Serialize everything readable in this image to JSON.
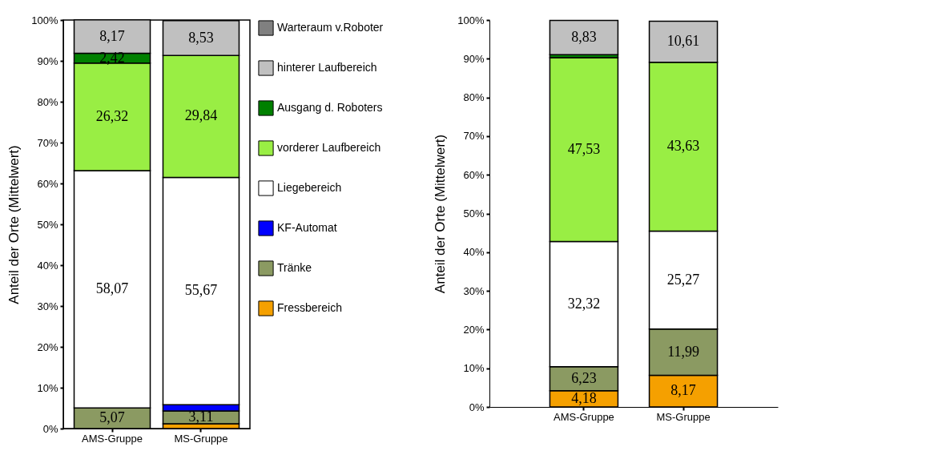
{
  "chart_data": [
    {
      "type": "bar",
      "stacked": true,
      "ylabel": "Anteil der Orte (Mittelwert)",
      "categories": [
        "AMS-Gruppe",
        "MS-Gruppe"
      ],
      "ylim": [
        0,
        100
      ],
      "yticks": [
        {
          "value": 0,
          "label": "0%"
        },
        {
          "value": 10,
          "label": "10%"
        },
        {
          "value": 20,
          "label": "20%"
        },
        {
          "value": 30,
          "label": "30%"
        },
        {
          "value": 40,
          "label": "40%"
        },
        {
          "value": 50,
          "label": "50%"
        },
        {
          "value": 60,
          "label": "60%"
        },
        {
          "value": 70,
          "label": "70%"
        },
        {
          "value": 80,
          "label": "80%"
        },
        {
          "value": 90,
          "label": "90%"
        },
        {
          "value": 100,
          "label": "100%"
        }
      ],
      "grid": false,
      "legend": "right",
      "series": [
        {
          "name": "Fressbereich",
          "color": "#f5a000",
          "values": [
            null,
            1.2
          ],
          "value_labels": [
            null,
            null
          ]
        },
        {
          "name": "Tränke",
          "color": "#8b9a62",
          "values": [
            5.07,
            3.11
          ],
          "value_labels": [
            "5,07",
            "3,11"
          ]
        },
        {
          "name": "KF-Automat",
          "color": "#0000ff",
          "values": [
            null,
            1.5
          ],
          "value_labels": [
            null,
            null
          ]
        },
        {
          "name": "Liegebereich",
          "color": "#ffffff",
          "values": [
            58.07,
            55.67
          ],
          "value_labels": [
            "58,07",
            "55,67"
          ]
        },
        {
          "name": "vorderer Laufbereich",
          "color": "#99ee44",
          "values": [
            26.32,
            29.84
          ],
          "value_labels": [
            "26,32",
            "29,84"
          ]
        },
        {
          "name": "Ausgang d. Roboters",
          "color": "#008000",
          "values": [
            2.42,
            null
          ],
          "value_labels": [
            "2,42",
            null
          ]
        },
        {
          "name": "hinterer Laufbereich",
          "color": "#c0c0c0",
          "values": [
            8.17,
            8.53
          ],
          "value_labels": [
            "8,17",
            "8,53"
          ]
        },
        {
          "name": "Warteraum v.Roboter",
          "color": "#808080",
          "values": [
            null,
            null
          ],
          "value_labels": [
            null,
            null
          ]
        }
      ]
    },
    {
      "type": "bar",
      "stacked": true,
      "ylabel": "Anteil der Orte (Mittelwert)",
      "categories": [
        "AMS-Gruppe",
        "MS-Gruppe"
      ],
      "ylim": [
        0,
        100
      ],
      "yticks": [
        {
          "value": 0,
          "label": "0%"
        },
        {
          "value": 10,
          "label": "10%"
        },
        {
          "value": 20,
          "label": "20%"
        },
        {
          "value": 30,
          "label": "30%"
        },
        {
          "value": 40,
          "label": "40%"
        },
        {
          "value": 50,
          "label": "50%"
        },
        {
          "value": 60,
          "label": "60%"
        },
        {
          "value": 70,
          "label": "70%"
        },
        {
          "value": 80,
          "label": "80%"
        },
        {
          "value": 90,
          "label": "90%"
        },
        {
          "value": 100,
          "label": "100%"
        }
      ],
      "grid": false,
      "legend": false,
      "series": [
        {
          "color": "#f5a000",
          "values": [
            4.18,
            8.17
          ],
          "value_labels": [
            "4,18",
            "8,17"
          ]
        },
        {
          "color": "#8b9a62",
          "values": [
            6.23,
            11.99
          ],
          "value_labels": [
            "6,23",
            "11,99"
          ]
        },
        {
          "color": "#0000ff",
          "values": [
            null,
            null
          ],
          "value_labels": [
            null,
            null
          ]
        },
        {
          "color": "#ffffff",
          "values": [
            32.32,
            25.27
          ],
          "value_labels": [
            "32,32",
            "25,27"
          ]
        },
        {
          "color": "#99ee44",
          "values": [
            47.53,
            43.63
          ],
          "value_labels": [
            "47,53",
            "43,63"
          ]
        },
        {
          "color": "#008000",
          "values": [
            0.8,
            null
          ],
          "value_labels": [
            null,
            null
          ]
        },
        {
          "color": "#c0c0c0",
          "values": [
            8.83,
            10.61
          ],
          "value_labels": [
            "8,83",
            "10,61"
          ]
        }
      ]
    }
  ]
}
